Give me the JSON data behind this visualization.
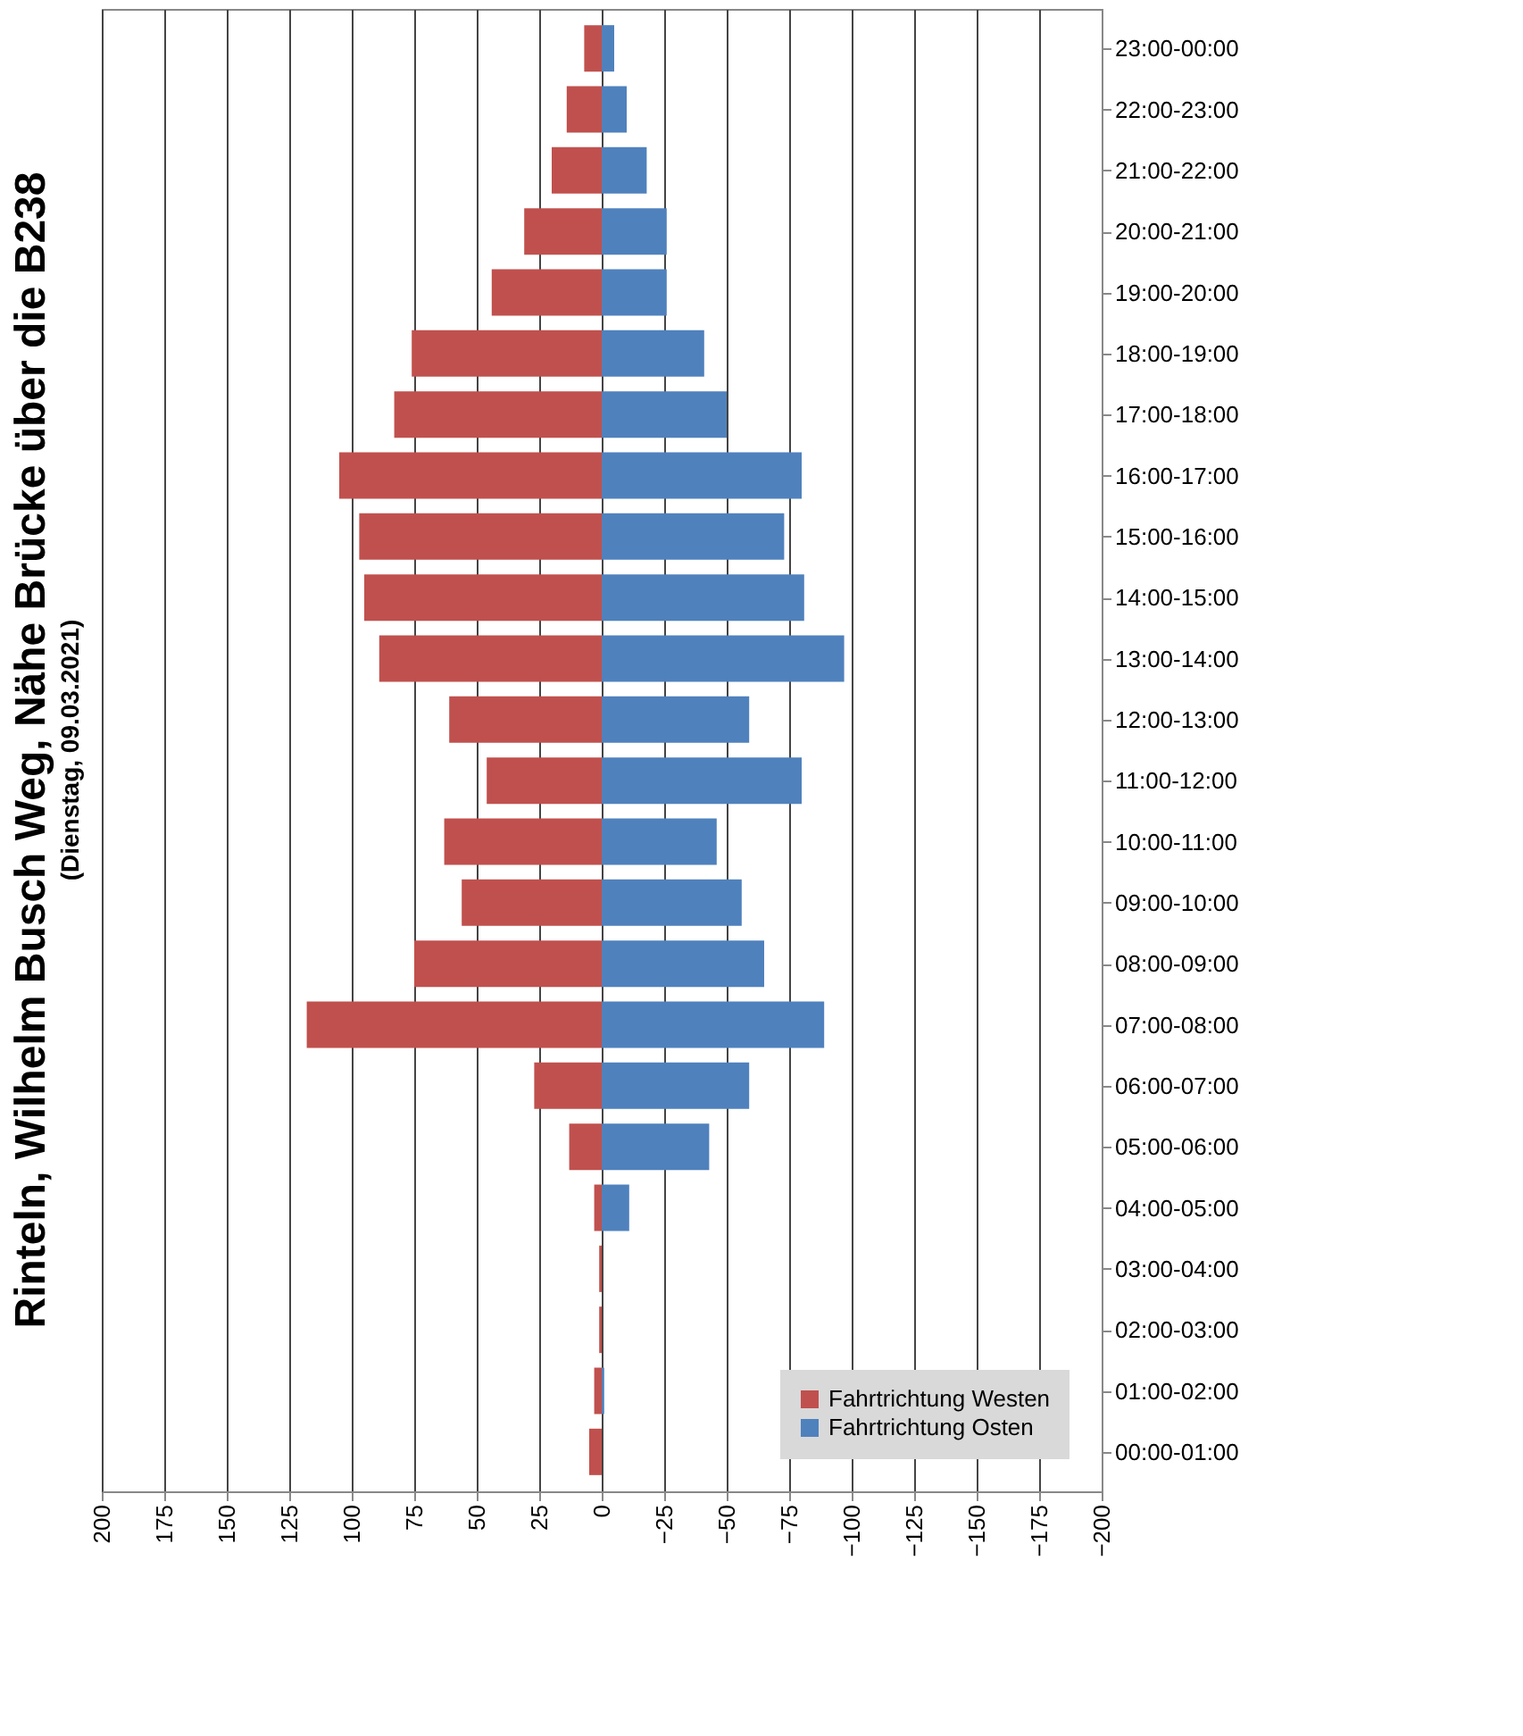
{
  "chart_data": {
    "type": "bar",
    "orientation": "horizontal",
    "title": "Rinteln, Wilhelm Busch Weg, Nähe Brücke über die B238",
    "subtitle": "(Dienstag, 09.03.2021)",
    "categories": [
      "23:00-00:00",
      "22:00-23:00",
      "21:00-22:00",
      "20:00-21:00",
      "19:00-20:00",
      "18:00-19:00",
      "17:00-18:00",
      "16:00-17:00",
      "15:00-16:00",
      "14:00-15:00",
      "13:00-14:00",
      "12:00-13:00",
      "11:00-12:00",
      "10:00-11:00",
      "09:00-10:00",
      "08:00-09:00",
      "07:00-08:00",
      "06:00-07:00",
      "05:00-06:00",
      "04:00-05:00",
      "03:00-04:00",
      "02:00-03:00",
      "01:00-02:00",
      "00:00-01:00"
    ],
    "series": [
      {
        "name": "Fahrtrichtung Westen",
        "color": "#c0504d",
        "values": [
          7,
          14,
          20,
          31,
          44,
          76,
          83,
          105,
          97,
          95,
          89,
          61,
          46,
          63,
          56,
          75,
          118,
          27,
          13,
          3,
          1,
          1,
          3,
          5
        ]
      },
      {
        "name": "Fahrtrichtung Osten",
        "color": "#4f81bd",
        "values": [
          -5,
          -10,
          -18,
          -26,
          -26,
          -41,
          -50,
          -80,
          -73,
          -81,
          -97,
          -59,
          -80,
          -46,
          -56,
          -65,
          -89,
          -59,
          -43,
          -11,
          0,
          0,
          -1,
          0
        ]
      }
    ],
    "xlim": [
      200,
      -200
    ],
    "xticks": [
      200,
      175,
      150,
      125,
      100,
      75,
      50,
      25,
      0,
      -25,
      -50,
      -75,
      -100,
      -125,
      -150,
      -175,
      -200
    ],
    "grid": "x",
    "legend": "bottom right",
    "stacked": true
  }
}
